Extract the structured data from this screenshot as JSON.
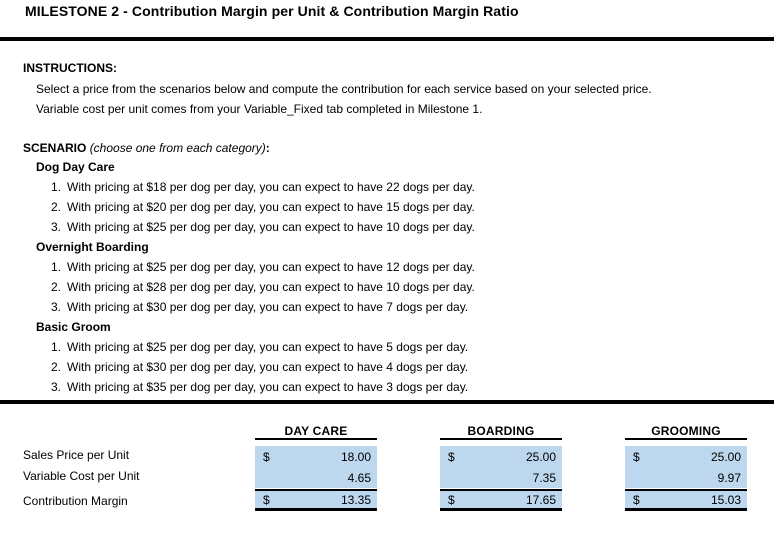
{
  "title": "MILESTONE 2 - Contribution Margin per Unit & Contribution Margin Ratio",
  "instructions": {
    "heading": "INSTRUCTIONS:",
    "lines": [
      "Select a price from the scenarios below and compute the contribution for each service based on your selected price.",
      "Variable cost per unit comes from your Variable_Fixed tab completed in Milestone 1."
    ]
  },
  "scenario": {
    "heading": "SCENARIO",
    "note": "(choose one from each category)",
    "suffix": ":",
    "categories": [
      {
        "name": "Dog Day Care",
        "items": [
          {
            "num": "1.",
            "text": "With pricing at $18 per dog per day, you can expect to have 22 dogs per day."
          },
          {
            "num": "2.",
            "text": "With pricing at $20 per dog per day, you can expect to have 15 dogs per day."
          },
          {
            "num": "3.",
            "text": "With pricing at $25 per dog per day, you can expect to have 10 dogs per day."
          }
        ]
      },
      {
        "name": "Overnight Boarding",
        "items": [
          {
            "num": "1.",
            "text": "With pricing at $25 per dog per day, you can expect to have 12 dogs per day."
          },
          {
            "num": "2.",
            "text": "With pricing at $28 per dog per day, you can expect to have 10 dogs per day."
          },
          {
            "num": "3.",
            "text": "With pricing at $30 per dog per day, you can expect to have 7 dogs per day."
          }
        ]
      },
      {
        "name": "Basic Groom",
        "items": [
          {
            "num": "1.",
            "text": "With pricing at $25 per dog per day, you can expect to have 5 dogs per day."
          },
          {
            "num": "2.",
            "text": "With pricing at $30 per dog per day, you can expect to have 4 dogs per day."
          },
          {
            "num": "3.",
            "text": "With pricing at $35 per dog per day, you can expect to have 3 dogs per day."
          }
        ]
      }
    ]
  },
  "table": {
    "row_labels": [
      "Sales Price per Unit",
      "Variable Cost per Unit",
      "Contribution Margin"
    ],
    "columns": [
      {
        "header": "DAY CARE",
        "sales_currency": "$",
        "sales_price": "18.00",
        "variable_cost": "4.65",
        "margin_currency": "$",
        "contribution_margin": "13.35"
      },
      {
        "header": "BOARDING",
        "sales_currency": "$",
        "sales_price": "25.00",
        "variable_cost": "7.35",
        "margin_currency": "$",
        "contribution_margin": "17.65"
      },
      {
        "header": "GROOMING",
        "sales_currency": "$",
        "sales_price": "25.00",
        "variable_cost": "9.97",
        "margin_currency": "$",
        "contribution_margin": "15.03"
      }
    ]
  },
  "colors": {
    "cell_fill": "#BDD7EE",
    "border": "#000000"
  }
}
